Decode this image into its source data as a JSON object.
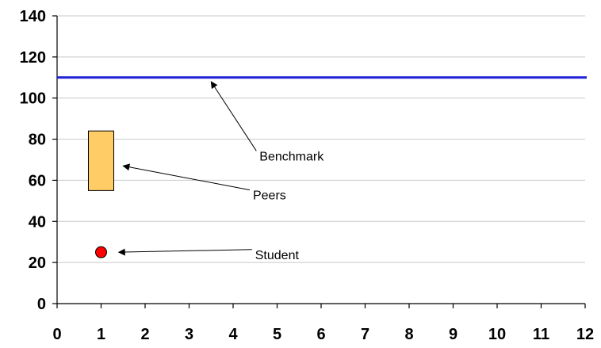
{
  "chart_data": {
    "type": "scatter",
    "title": "",
    "xlabel": "",
    "ylabel": "",
    "xlim": [
      0,
      12
    ],
    "ylim": [
      0,
      140
    ],
    "x_ticks": [
      "0",
      "1",
      "2",
      "3",
      "4",
      "5",
      "6",
      "7",
      "8",
      "9",
      "10",
      "11",
      "12"
    ],
    "y_ticks": [
      "0",
      "20",
      "40",
      "60",
      "80",
      "100",
      "120",
      "140"
    ],
    "grid": true,
    "benchmark": {
      "y": 110,
      "color": "#1f1fd6"
    },
    "peers": {
      "x": 1,
      "y_low": 55,
      "y_high": 84,
      "color": "#ffcc66",
      "edge": "#000000"
    },
    "student": {
      "x": 1,
      "y": 25,
      "color": "#ff0000",
      "edge": "#000000"
    },
    "annotations": [
      {
        "text": "Benchmark",
        "text_x": 4.6,
        "text_y": 72,
        "arrow_to_x": 3.5,
        "arrow_to_y": 108
      },
      {
        "text": "Peers",
        "text_x": 4.45,
        "text_y": 53,
        "arrow_to_x": 1.5,
        "arrow_to_y": 67
      },
      {
        "text": "Student",
        "text_x": 4.5,
        "text_y": 24,
        "arrow_to_x": 1.4,
        "arrow_to_y": 25
      }
    ]
  }
}
